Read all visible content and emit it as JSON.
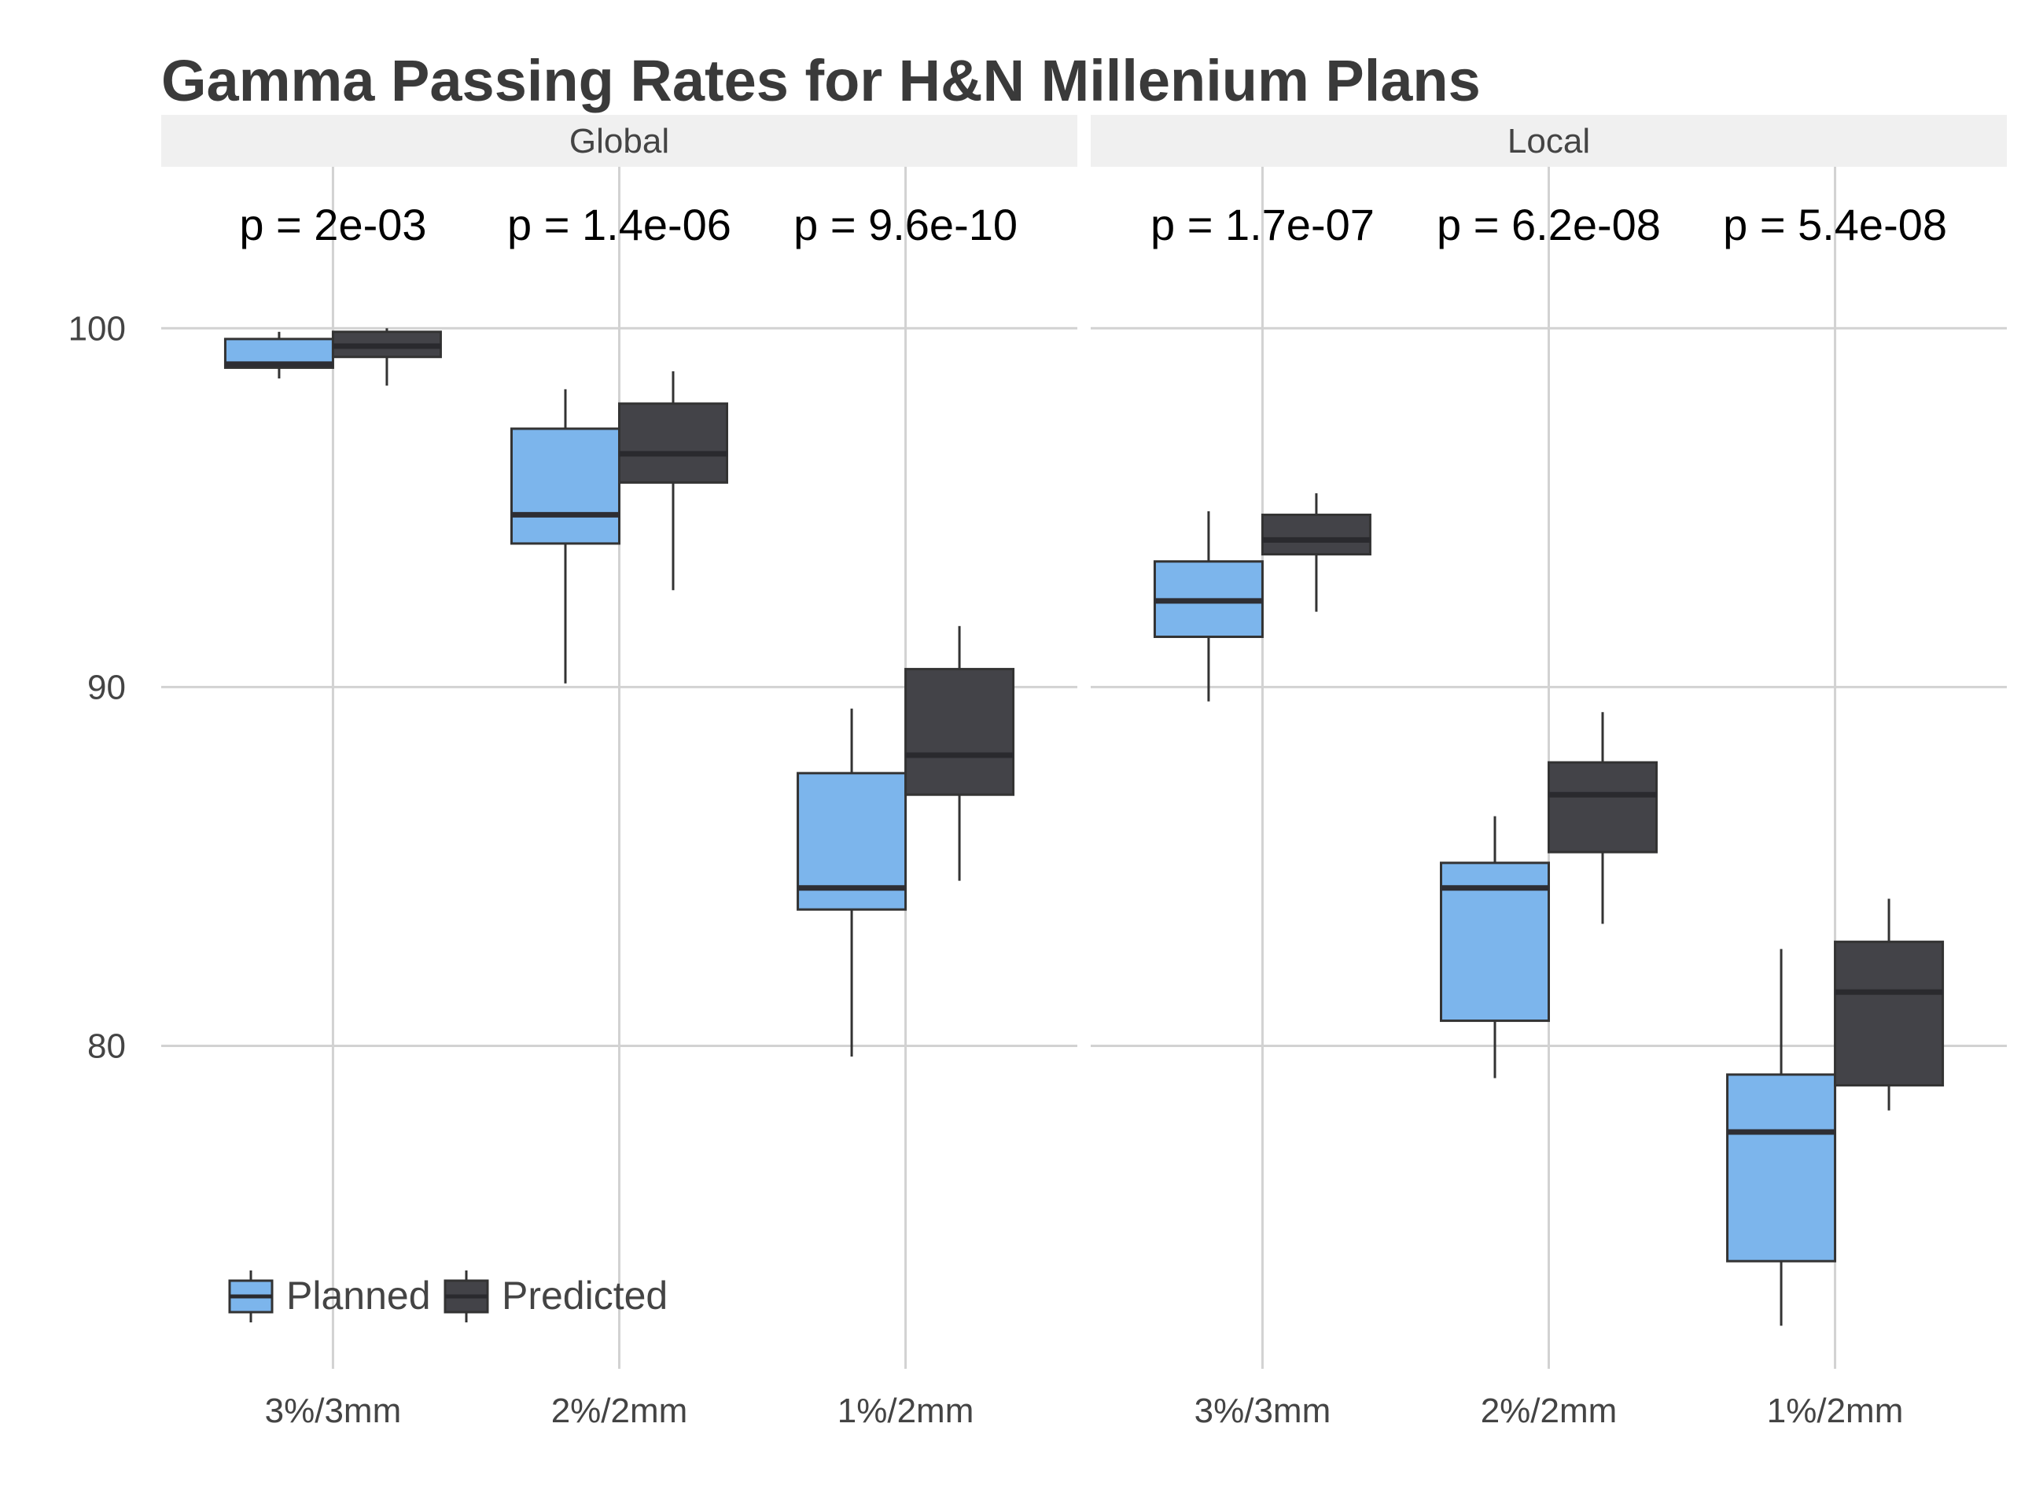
{
  "chart_data": {
    "type": "box",
    "title": "Gamma Passing Rates for H&N Millenium Plans",
    "xlabel": "",
    "ylabel": "",
    "ylim": [
      71,
      104.5
    ],
    "yticks": [
      80,
      90,
      100
    ],
    "grid": true,
    "legend": {
      "position": "bottom-left",
      "entries": [
        "Planned",
        "Predicted"
      ]
    },
    "colors": {
      "Planned": "#7cb5ec",
      "Predicted": "#434348"
    },
    "categories": [
      "3%/3mm",
      "2%/2mm",
      "1%/2mm"
    ],
    "panels": [
      {
        "name": "Global",
        "pvalues": [
          "p = 2e-03",
          "p = 1.4e-06",
          "p = 9.6e-10"
        ],
        "series": [
          {
            "name": "Planned",
            "boxes": [
              {
                "min": 98.6,
                "q1": 98.9,
                "median": 99.0,
                "q3": 99.7,
                "max": 99.9
              },
              {
                "min": 90.1,
                "q1": 94.0,
                "median": 94.8,
                "q3": 97.2,
                "max": 98.3
              },
              {
                "min": 79.7,
                "q1": 83.8,
                "median": 84.4,
                "q3": 87.6,
                "max": 89.4
              }
            ]
          },
          {
            "name": "Predicted",
            "boxes": [
              {
                "min": 98.4,
                "q1": 99.2,
                "median": 99.5,
                "q3": 99.9,
                "max": 100.0
              },
              {
                "min": 92.7,
                "q1": 95.7,
                "median": 96.5,
                "q3": 97.9,
                "max": 98.8
              },
              {
                "min": 84.6,
                "q1": 87.0,
                "median": 88.1,
                "q3": 90.5,
                "max": 91.7
              }
            ]
          }
        ]
      },
      {
        "name": "Local",
        "pvalues": [
          "p = 1.7e-07",
          "p = 6.2e-08",
          "p = 5.4e-08"
        ],
        "series": [
          {
            "name": "Planned",
            "boxes": [
              {
                "min": 89.6,
                "q1": 91.4,
                "median": 92.4,
                "q3": 93.5,
                "max": 94.9
              },
              {
                "min": 79.1,
                "q1": 80.7,
                "median": 84.4,
                "q3": 85.1,
                "max": 86.4
              },
              {
                "min": 72.2,
                "q1": 74.0,
                "median": 77.6,
                "q3": 79.2,
                "max": 82.7
              }
            ]
          },
          {
            "name": "Predicted",
            "boxes": [
              {
                "min": 92.1,
                "q1": 93.7,
                "median": 94.1,
                "q3": 94.8,
                "max": 95.4
              },
              {
                "min": 83.4,
                "q1": 85.4,
                "median": 87.0,
                "q3": 87.9,
                "max": 89.3
              },
              {
                "min": 78.2,
                "q1": 78.9,
                "median": 81.5,
                "q3": 82.9,
                "max": 84.1
              }
            ]
          }
        ]
      }
    ]
  }
}
